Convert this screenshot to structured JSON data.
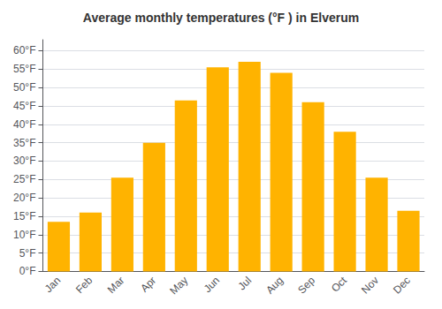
{
  "chart_data": {
    "type": "bar",
    "title": "Average monthly temperatures (°F ) in Elverum",
    "categories": [
      "Jan",
      "Feb",
      "Mar",
      "Apr",
      "May",
      "Jun",
      "Jul",
      "Aug",
      "Sep",
      "Oct",
      "Nov",
      "Dec"
    ],
    "values": [
      13.5,
      16.0,
      25.5,
      35.0,
      46.5,
      55.5,
      57.0,
      54.0,
      46.0,
      38.0,
      25.5,
      16.5
    ],
    "color": "#FFB300",
    "ylim": [
      0,
      63
    ],
    "yticks": [
      {
        "value": 0,
        "label": "0°F"
      },
      {
        "value": 5,
        "label": "5°F"
      },
      {
        "value": 10,
        "label": "10°F"
      },
      {
        "value": 15,
        "label": "15°F"
      },
      {
        "value": 20,
        "label": "20°F"
      },
      {
        "value": 25,
        "label": "25°F"
      },
      {
        "value": 30,
        "label": "30°F"
      },
      {
        "value": 35,
        "label": "35°F"
      },
      {
        "value": 40,
        "label": "40°F"
      },
      {
        "value": 45,
        "label": "45°F"
      },
      {
        "value": 50,
        "label": "50°F"
      },
      {
        "value": 55,
        "label": "55°F"
      },
      {
        "value": 60,
        "label": "60°F"
      }
    ],
    "grid": true
  }
}
